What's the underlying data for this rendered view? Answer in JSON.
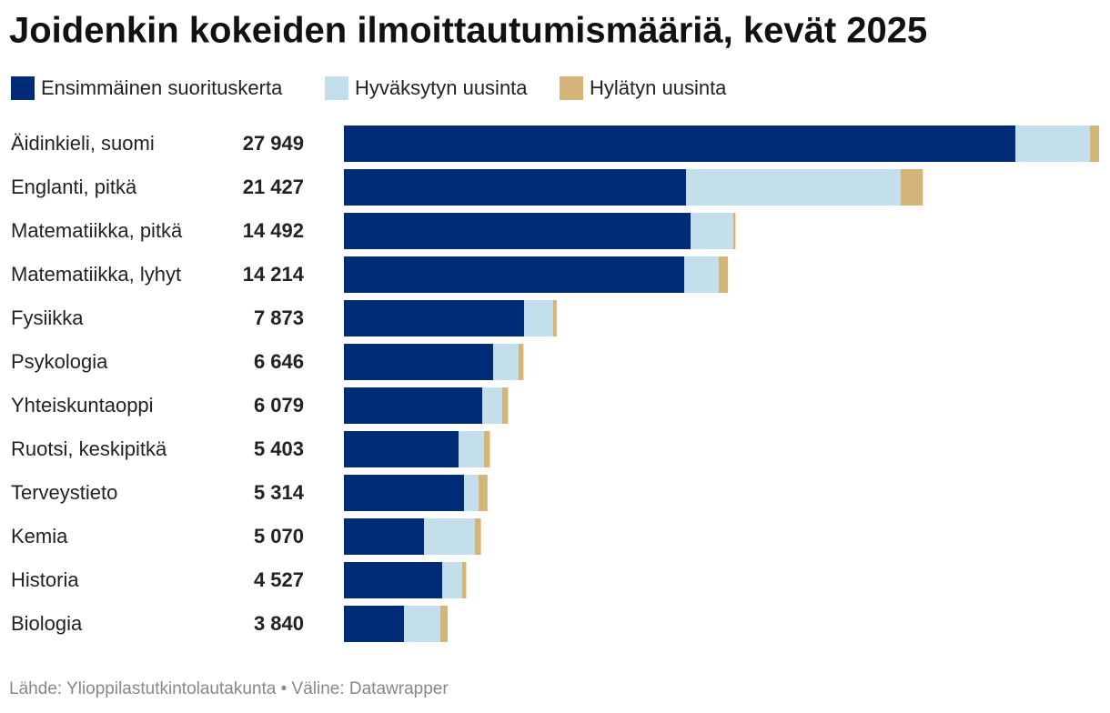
{
  "chart_data": {
    "type": "bar",
    "orientation": "horizontal",
    "stacked": true,
    "title": "Joidenkin kokeiden ilmoittautumismääriä, kevät 2025",
    "source": "Lähde: Ylioppilastutkintolautakunta • Väline: Datawrapper",
    "categories": [
      "Äidinkieli, suomi",
      "Englanti, pitkä",
      "Matematiikka, pitkä",
      "Matematiikka, lyhyt",
      "Fysiikka",
      "Psykologia",
      "Yhteiskuntaoppi",
      "Ruotsi, keskipitkä",
      "Terveystieto",
      "Kemia",
      "Historia",
      "Biologia"
    ],
    "totals": [
      27949,
      21427,
      14492,
      14214,
      7873,
      6646,
      6079,
      5403,
      5314,
      5070,
      4527,
      3840
    ],
    "total_labels": [
      "27 949",
      "21 427",
      "14 492",
      "14 214",
      "7 873",
      "6 646",
      "6 079",
      "5 403",
      "5 314",
      "5 070",
      "4 527",
      "3 840"
    ],
    "series": [
      {
        "name": "Ensimmäinen suorituskerta",
        "color": "#002b76",
        "values": [
          24850,
          12661,
          12830,
          12594,
          6667,
          5523,
          5118,
          4243,
          4445,
          2963,
          3637,
          2222
        ]
      },
      {
        "name": "Hyväksytyn uusinta",
        "color": "#c3dfec",
        "values": [
          2760,
          7947,
          1583,
          1280,
          1078,
          943,
          741,
          943,
          539,
          1886,
          741,
          1347
        ]
      },
      {
        "name": "Hylätyn uusinta",
        "color": "#d5b47a",
        "values": [
          339,
          819,
          79,
          340,
          128,
          180,
          220,
          217,
          330,
          221,
          149,
          271
        ]
      }
    ]
  }
}
